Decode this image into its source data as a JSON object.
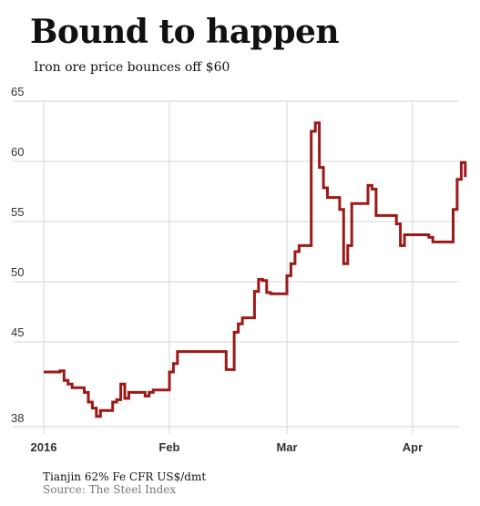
{
  "chart_data": {
    "type": "line",
    "title": "Bound to happen",
    "subtitle": "Iron ore price bounces off $60",
    "note": "Tianjin 62% Fe CFR US$/dmt",
    "source": "Source: The Steel Index",
    "xlabel": "",
    "ylabel": "",
    "ylim": [
      38,
      65
    ],
    "xlim": [
      "2016-01-01",
      "2016-04-15"
    ],
    "y_ticks": [
      65,
      60,
      55,
      50,
      45,
      38
    ],
    "x_ticks": [
      {
        "date": "2016-01-01",
        "label": "2016"
      },
      {
        "date": "2016-02-01",
        "label": "Feb"
      },
      {
        "date": "2016-03-01",
        "label": "Mar"
      },
      {
        "date": "2016-04-01",
        "label": "Apr"
      }
    ],
    "grid": true,
    "line_color": "#9b1a17",
    "series": [
      {
        "name": "",
        "x": [
          "2016-01-01",
          "2016-01-05",
          "2016-01-06",
          "2016-01-07",
          "2016-01-08",
          "2016-01-11",
          "2016-01-12",
          "2016-01-13",
          "2016-01-14",
          "2016-01-15",
          "2016-01-18",
          "2016-01-19",
          "2016-01-20",
          "2016-01-21",
          "2016-01-22",
          "2016-01-25",
          "2016-01-26",
          "2016-01-27",
          "2016-01-28",
          "2016-01-29",
          "2016-02-01",
          "2016-02-02",
          "2016-02-03",
          "2016-02-04",
          "2016-02-05",
          "2016-02-15",
          "2016-02-16",
          "2016-02-17",
          "2016-02-18",
          "2016-02-19",
          "2016-02-22",
          "2016-02-23",
          "2016-02-24",
          "2016-02-25",
          "2016-02-26",
          "2016-02-29",
          "2016-03-01",
          "2016-03-02",
          "2016-03-03",
          "2016-03-04",
          "2016-03-07",
          "2016-03-08",
          "2016-03-09",
          "2016-03-10",
          "2016-03-11",
          "2016-03-14",
          "2016-03-15",
          "2016-03-16",
          "2016-03-17",
          "2016-03-18",
          "2016-03-21",
          "2016-03-22",
          "2016-03-23",
          "2016-03-24",
          "2016-03-25",
          "2016-03-28",
          "2016-03-29",
          "2016-03-30",
          "2016-03-31",
          "2016-04-01",
          "2016-04-04",
          "2016-04-05",
          "2016-04-06",
          "2016-04-07",
          "2016-04-08",
          "2016-04-11",
          "2016-04-12",
          "2016-04-13",
          "2016-04-14"
        ],
        "values": [
          42.5,
          42.6,
          41.8,
          41.5,
          41.2,
          40.8,
          40.0,
          39.5,
          38.8,
          39.3,
          40.0,
          40.2,
          41.5,
          40.3,
          40.8,
          40.8,
          40.5,
          40.8,
          41.0,
          41.0,
          42.5,
          43.2,
          44.2,
          44.2,
          44.2,
          42.7,
          42.7,
          45.8,
          46.5,
          47.0,
          49.2,
          50.2,
          50.1,
          49.1,
          49.0,
          49.0,
          50.5,
          51.5,
          52.5,
          53.0,
          62.5,
          63.2,
          59.5,
          57.8,
          57.0,
          56.0,
          51.5,
          53.0,
          56.5,
          56.5,
          58.0,
          57.7,
          55.5,
          55.5,
          55.5,
          54.8,
          53.0,
          53.9,
          53.9,
          53.9,
          53.9,
          53.7,
          53.3,
          53.3,
          53.3,
          56.0,
          58.5,
          59.9,
          58.7
        ]
      }
    ]
  }
}
